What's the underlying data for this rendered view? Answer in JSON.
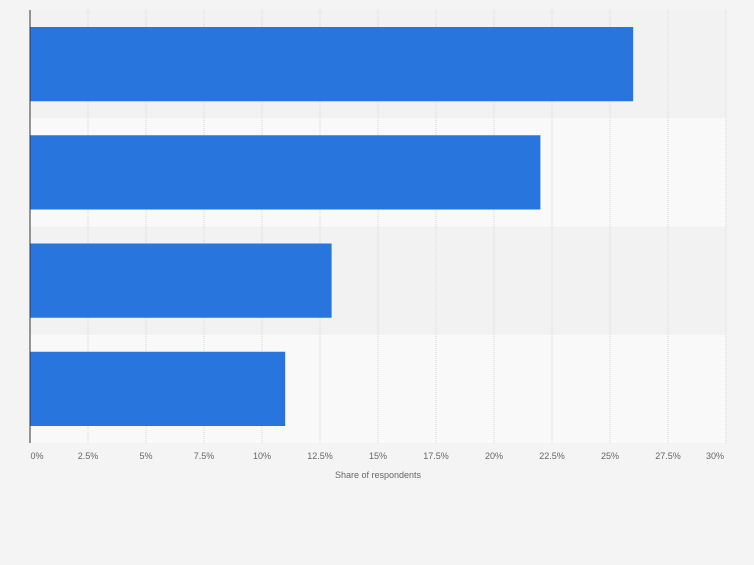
{
  "chart_data": {
    "type": "bar",
    "orientation": "horizontal",
    "categories": [
      "",
      "",
      "",
      ""
    ],
    "values": [
      26,
      22,
      13,
      11
    ],
    "title": "",
    "xlabel": "Share of respondents",
    "ylabel": "",
    "xlim": [
      0,
      30
    ],
    "x_ticks": [
      0,
      2.5,
      5,
      7.5,
      10,
      12.5,
      15,
      17.5,
      20,
      22.5,
      25,
      27.5,
      30
    ],
    "x_tick_labels": [
      "0%",
      "2.5%",
      "5%",
      "7.5%",
      "10%",
      "12.5%",
      "15%",
      "17.5%",
      "20%",
      "22.5%",
      "25%",
      "27.5%",
      "30%"
    ],
    "grid": "vertical",
    "legend": "none",
    "bar_color": "#2876dd",
    "band_colors": [
      "#f2f2f2",
      "#f9f9f9"
    ],
    "grid_color": "#d8d8d8",
    "axis_color": "#333333",
    "tick_label_color": "#666666"
  }
}
